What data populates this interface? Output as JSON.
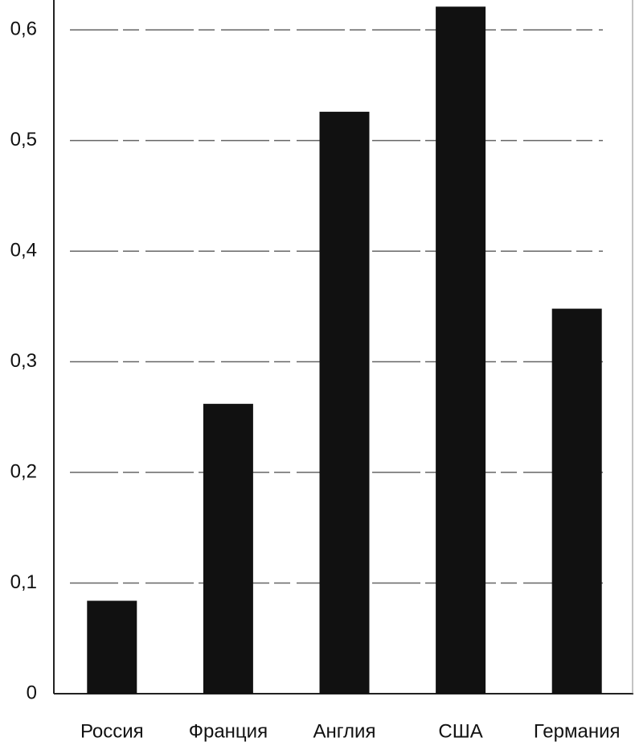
{
  "chart_data": {
    "type": "bar",
    "categories": [
      "Россия",
      "Франция",
      "Англия",
      "США",
      "Германия"
    ],
    "values": [
      0.084,
      0.262,
      0.526,
      0.621,
      0.348
    ],
    "color": "#111111",
    "ylim": [
      0,
      0.627
    ],
    "yticks": [
      0,
      {
        "value": 0.1,
        "label": "0,1"
      },
      {
        "value": 0.2,
        "label": "0,2"
      },
      {
        "value": 0.3,
        "label": "0,3"
      },
      {
        "value": 0.4,
        "label": "0,4"
      },
      {
        "value": 0.5,
        "label": "0,5"
      },
      {
        "value": 0.6,
        "label": "0,6"
      }
    ],
    "grid": true
  }
}
